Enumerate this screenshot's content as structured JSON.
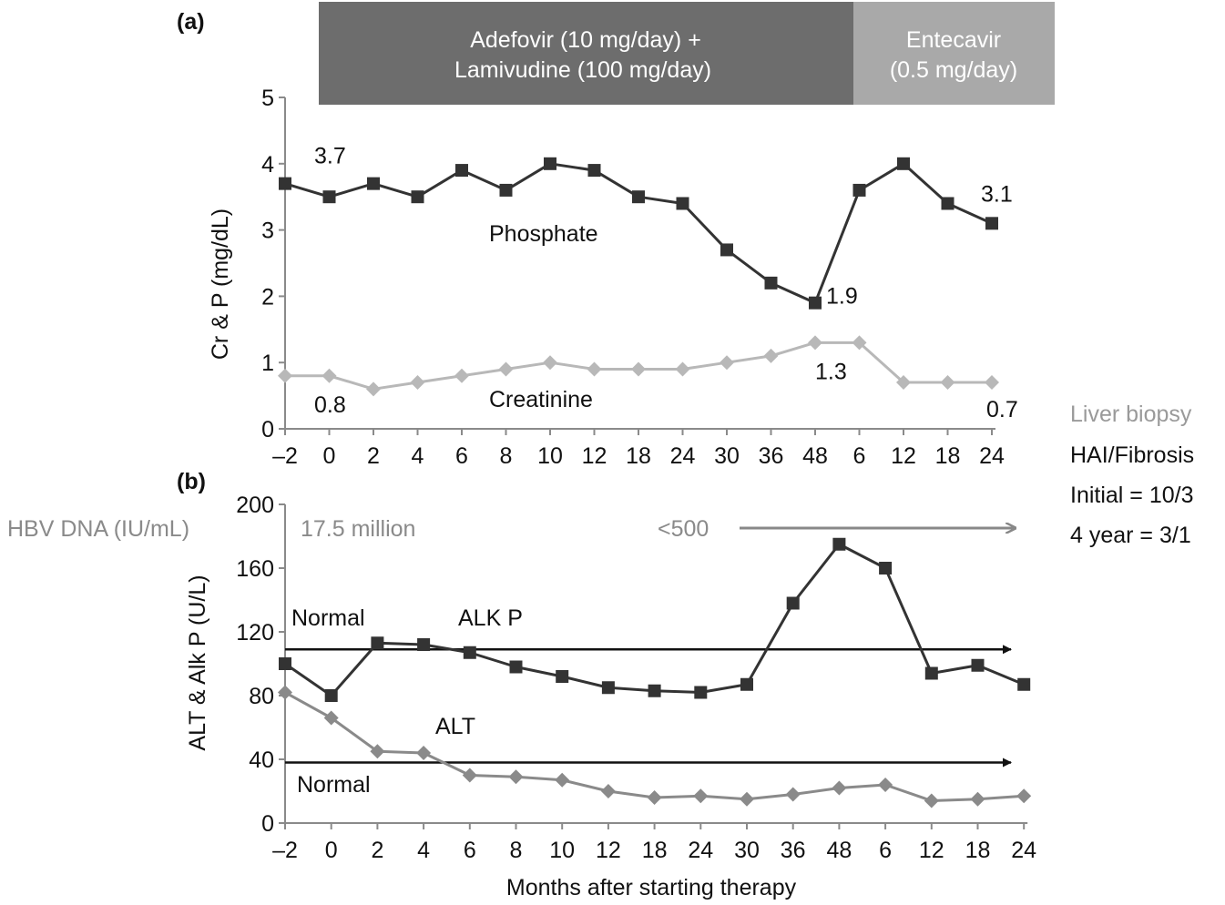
{
  "panel_a_label": "(a)",
  "panel_b_label": "(b)",
  "therapy_band": {
    "adefovir_line1": "Adefovir (10 mg/day) +",
    "adefovir_line2": "Lamivudine (100 mg/day)",
    "entecavir_line1": "Entecavir",
    "entecavir_line2": "(0.5 mg/day)",
    "adefovir_color": "#6d6d6d",
    "entecavir_color": "#a9a9a9"
  },
  "side_note": {
    "title": "Liver biopsy",
    "line1": "HAI/Fibrosis",
    "line2": "Initial = 10/3",
    "line3": "4 year = 3/1"
  },
  "hbv": {
    "label": "HBV DNA (IU/mL)",
    "initial": "17.5 million",
    "later": "<500"
  },
  "chart_data": [
    {
      "type": "line",
      "panel": "a",
      "categories": [
        "–2",
        "0",
        "2",
        "4",
        "6",
        "8",
        "10",
        "12",
        "18",
        "24",
        "30",
        "36",
        "48",
        "6",
        "12",
        "18",
        "24"
      ],
      "ylabel": "Cr & P (mg/dL)",
      "ylim": [
        0,
        5
      ],
      "yticks": [
        "0",
        "1",
        "2",
        "3",
        "4",
        "5"
      ],
      "grid": false,
      "series": [
        {
          "name": "Phosphate",
          "color": "#333333",
          "marker": "square",
          "values": [
            3.7,
            3.5,
            3.7,
            3.5,
            3.9,
            3.6,
            4.0,
            3.9,
            3.5,
            3.4,
            2.7,
            2.2,
            1.9,
            3.6,
            4.0,
            3.4,
            3.1
          ]
        },
        {
          "name": "Creatinine",
          "color": "#b8b8b8",
          "marker": "diamond",
          "values": [
            0.8,
            0.8,
            0.6,
            0.7,
            0.8,
            0.9,
            1.0,
            0.9,
            0.9,
            0.9,
            1.0,
            1.1,
            1.3,
            1.3,
            0.7,
            0.7,
            0.7
          ]
        }
      ],
      "annotations": [
        {
          "text": "3.7",
          "series": 0,
          "index": 0
        },
        {
          "text": "1.9",
          "series": 0,
          "index": 12
        },
        {
          "text": "3.1",
          "series": 0,
          "index": 16
        },
        {
          "text": "0.8",
          "series": 1,
          "index": 0
        },
        {
          "text": "1.3",
          "series": 1,
          "index": 12
        },
        {
          "text": "0.7",
          "series": 1,
          "index": 16
        }
      ]
    },
    {
      "type": "line",
      "panel": "b",
      "categories": [
        "–2",
        "0",
        "2",
        "4",
        "6",
        "8",
        "10",
        "12",
        "18",
        "24",
        "30",
        "36",
        "48",
        "6",
        "12",
        "18",
        "24"
      ],
      "xlabel": "Months after starting therapy",
      "ylabel": "ALT & Alk P (U/L)",
      "ylim": [
        0,
        200
      ],
      "yticks": [
        "0",
        "40",
        "80",
        "120",
        "160",
        "200"
      ],
      "grid": false,
      "series": [
        {
          "name": "ALK P",
          "color": "#333333",
          "marker": "square",
          "values": [
            100,
            80,
            113,
            112,
            107,
            98,
            92,
            85,
            83,
            82,
            87,
            138,
            175,
            160,
            94,
            99,
            87
          ]
        },
        {
          "name": "ALT",
          "color": "#8a8a8a",
          "marker": "diamond",
          "values": [
            82,
            66,
            45,
            44,
            30,
            29,
            27,
            20,
            16,
            17,
            15,
            18,
            22,
            24,
            14,
            15,
            17
          ]
        }
      ],
      "reference_lines": [
        {
          "label": "Normal",
          "value": 109
        },
        {
          "label": "Normal",
          "value": 38
        }
      ]
    }
  ]
}
